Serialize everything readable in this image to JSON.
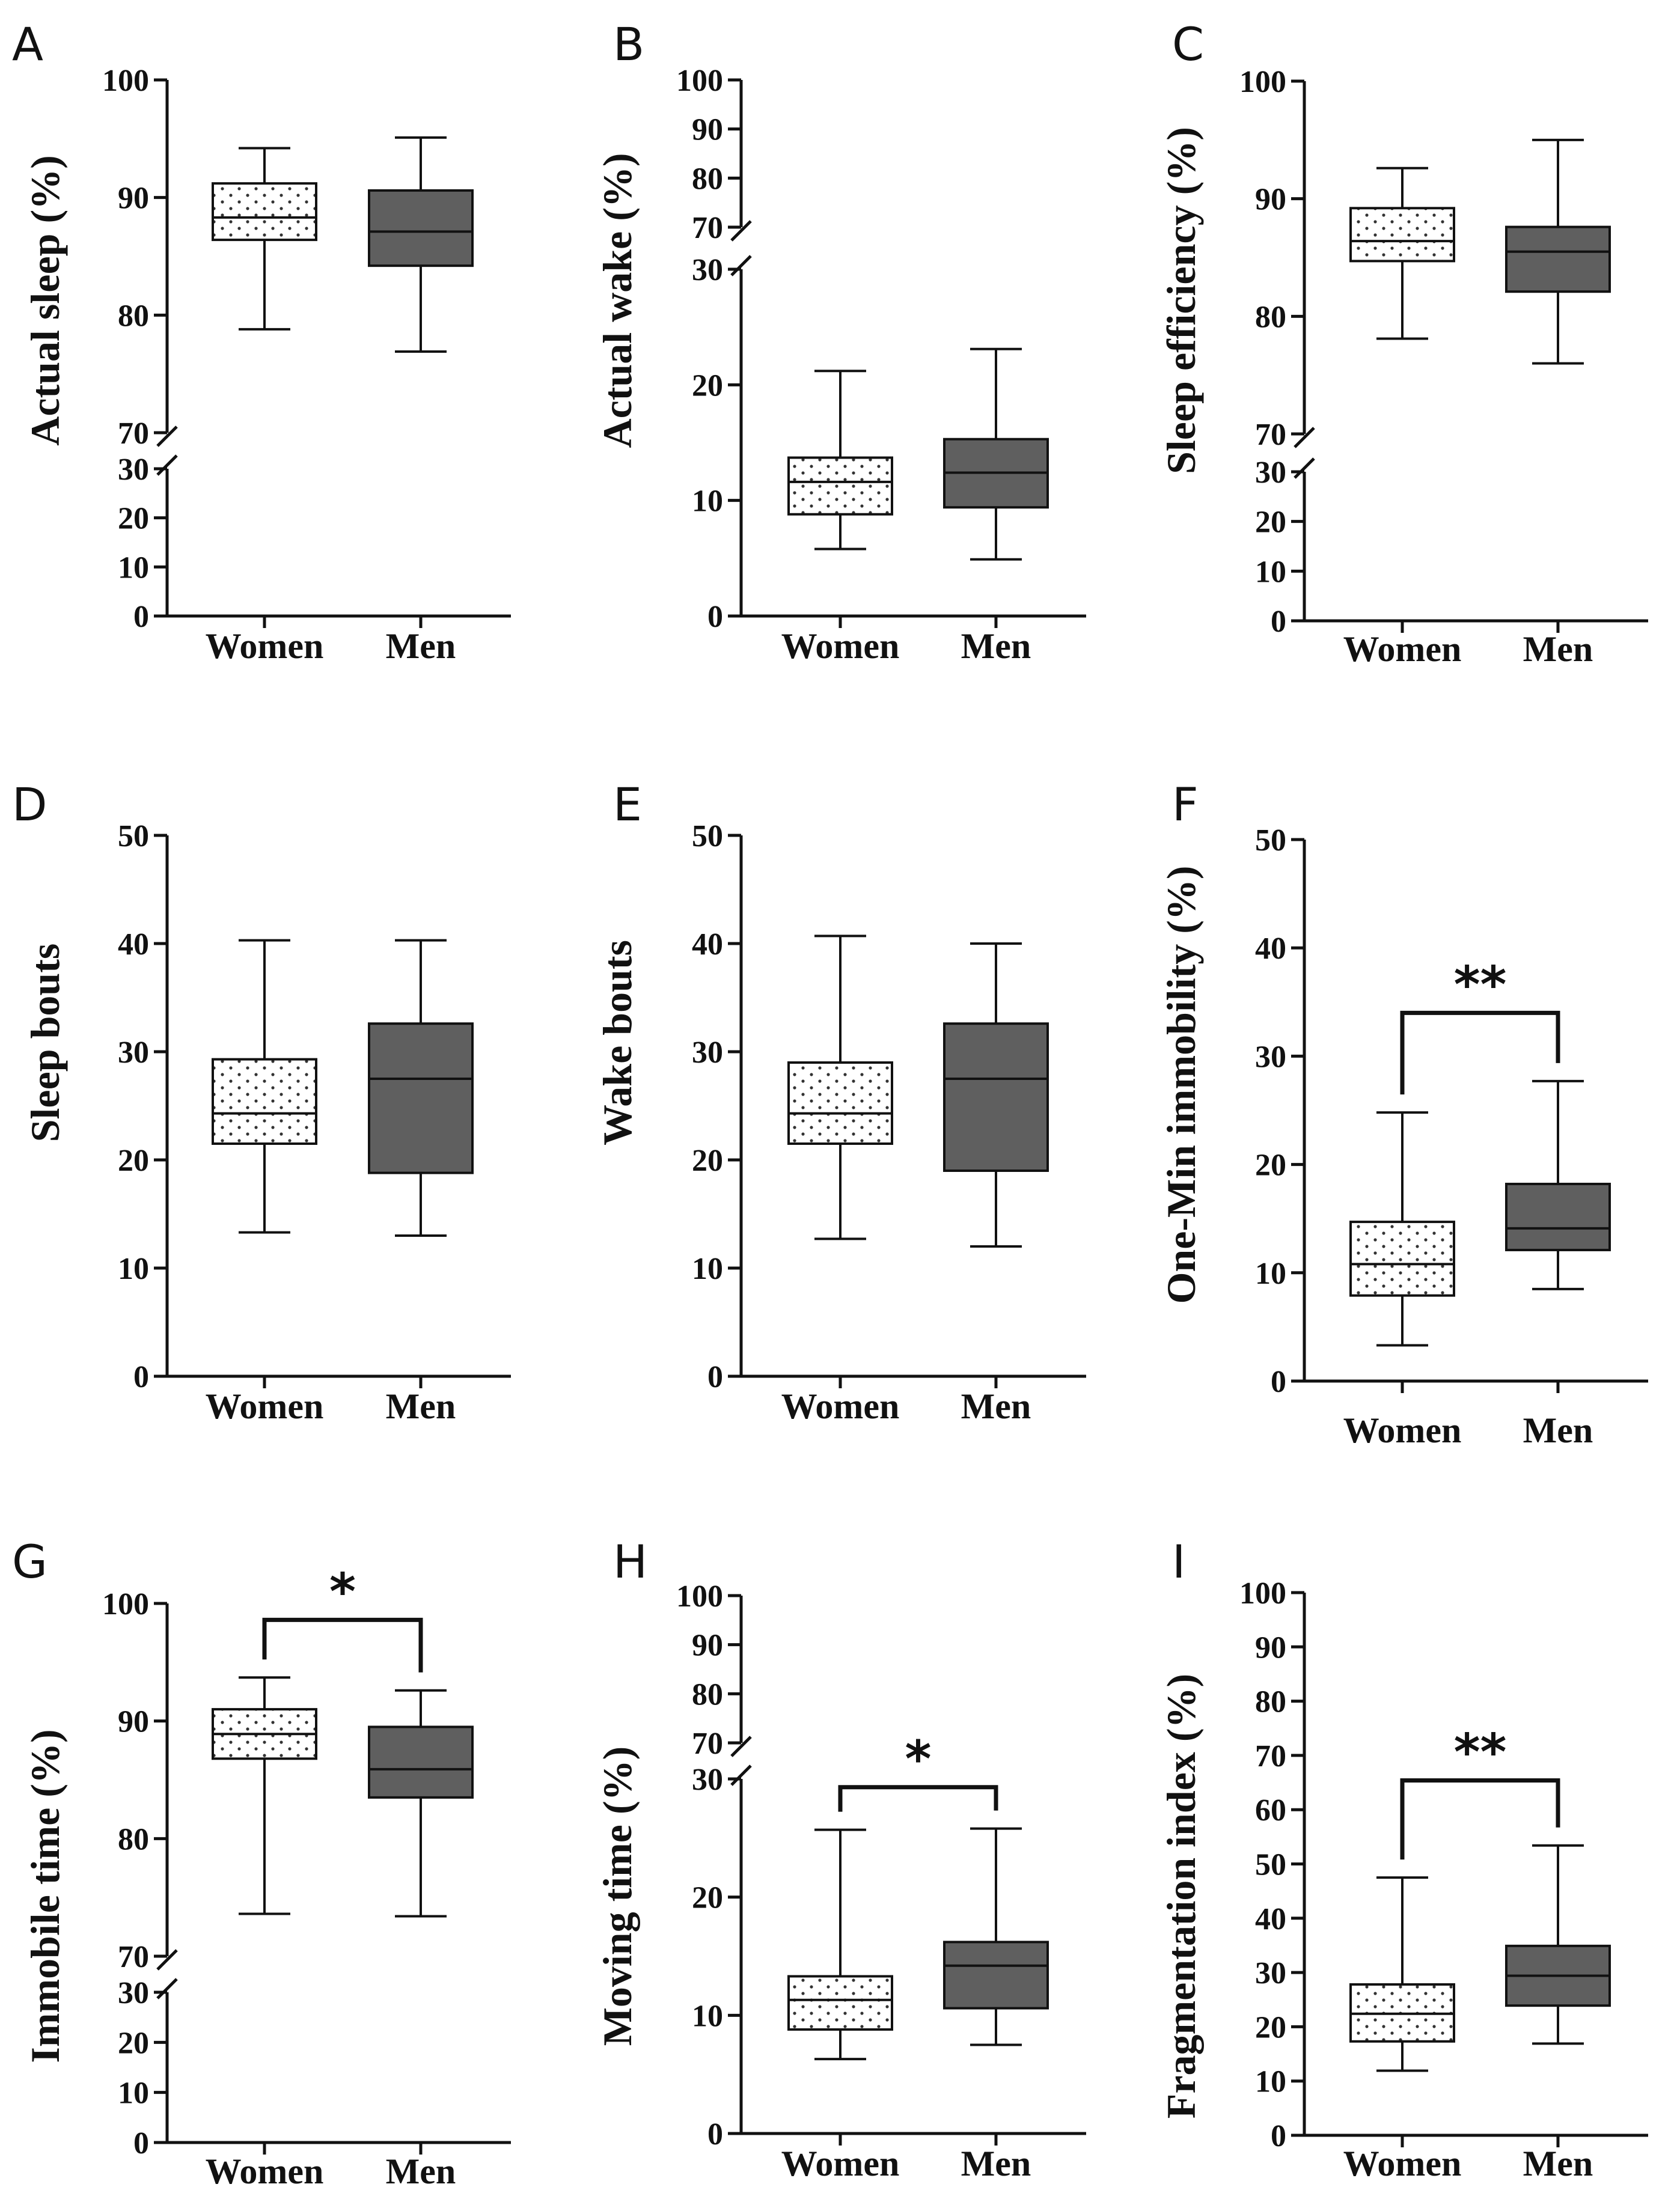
{
  "figure": {
    "colors": {
      "women_fill": "#ffffff",
      "women_dots": "#333333",
      "men_fill": "#5f5f5f",
      "line": "#111111"
    }
  },
  "chart_data": [
    {
      "type": "boxplot",
      "panel": "A",
      "ylabel": "Actual sleep (%)",
      "categories": [
        "Women",
        "Men"
      ],
      "broken_axis": true,
      "low_segment": [
        0,
        30
      ],
      "high_segment": [
        70,
        100
      ],
      "low_ticks": [
        "0",
        "10",
        "20",
        "30"
      ],
      "high_ticks": [
        "70",
        "80",
        "90",
        "100"
      ],
      "boxes": [
        {
          "category": "Women",
          "min": 78.8,
          "q1": 86.4,
          "median": 88.3,
          "q3": 91.2,
          "max": 94.2
        },
        {
          "category": "Men",
          "min": 76.9,
          "q1": 84.2,
          "median": 87.1,
          "q3": 90.6,
          "max": 95.1
        }
      ],
      "significance": null
    },
    {
      "type": "boxplot",
      "panel": "B",
      "ylabel": "Actual wake (%)",
      "categories": [
        "Women",
        "Men"
      ],
      "broken_axis": true,
      "low_segment": [
        0,
        30
      ],
      "high_segment": [
        70,
        100
      ],
      "low_ticks": [
        "0",
        "10",
        "20",
        "30"
      ],
      "high_ticks": [
        "70",
        "80",
        "90",
        "100"
      ],
      "boxes": [
        {
          "category": "Women",
          "min": 5.8,
          "q1": 8.8,
          "median": 11.6,
          "q3": 13.7,
          "max": 21.2
        },
        {
          "category": "Men",
          "min": 4.9,
          "q1": 9.4,
          "median": 12.4,
          "q3": 15.3,
          "max": 23.1
        }
      ],
      "significance": null
    },
    {
      "type": "boxplot",
      "panel": "C",
      "ylabel": "Sleep efficiency (%)",
      "categories": [
        "Women",
        "Men"
      ],
      "broken_axis": true,
      "low_segment": [
        0,
        30
      ],
      "high_segment": [
        70,
        100
      ],
      "low_ticks": [
        "0",
        "10",
        "20",
        "30"
      ],
      "high_ticks": [
        "70",
        "80",
        "90",
        "100"
      ],
      "boxes": [
        {
          "category": "Women",
          "min": 78.1,
          "q1": 84.7,
          "median": 86.4,
          "q3": 89.2,
          "max": 92.6
        },
        {
          "category": "Men",
          "min": 76.0,
          "q1": 82.1,
          "median": 85.5,
          "q3": 87.6,
          "max": 95.0
        }
      ],
      "significance": null
    },
    {
      "type": "boxplot",
      "panel": "D",
      "ylabel": "Sleep bouts",
      "categories": [
        "Women",
        "Men"
      ],
      "broken_axis": false,
      "ylim": [
        0,
        50
      ],
      "ticks": [
        "0",
        "10",
        "20",
        "30",
        "40",
        "50"
      ],
      "boxes": [
        {
          "category": "Women",
          "min": 13.3,
          "q1": 21.5,
          "median": 24.3,
          "q3": 29.3,
          "max": 40.3
        },
        {
          "category": "Men",
          "min": 13.0,
          "q1": 18.8,
          "median": 27.5,
          "q3": 32.6,
          "max": 40.3
        }
      ],
      "significance": null
    },
    {
      "type": "boxplot",
      "panel": "E",
      "ylabel": "Wake bouts",
      "categories": [
        "Women",
        "Men"
      ],
      "broken_axis": false,
      "ylim": [
        0,
        50
      ],
      "ticks": [
        "0",
        "10",
        "20",
        "30",
        "40",
        "50"
      ],
      "boxes": [
        {
          "category": "Women",
          "min": 12.7,
          "q1": 21.5,
          "median": 24.3,
          "q3": 29.0,
          "max": 40.7
        },
        {
          "category": "Men",
          "min": 12.0,
          "q1": 19.0,
          "median": 27.5,
          "q3": 32.6,
          "max": 40.0
        }
      ],
      "significance": null
    },
    {
      "type": "boxplot",
      "panel": "F",
      "ylabel": "One-Min immobility (%)",
      "categories": [
        "Women",
        "Men"
      ],
      "broken_axis": false,
      "ylim": [
        0,
        50
      ],
      "ticks": [
        "0",
        "10",
        "20",
        "30",
        "40",
        "50"
      ],
      "boxes": [
        {
          "category": "Women",
          "min": 3.3,
          "q1": 7.9,
          "median": 10.8,
          "q3": 14.7,
          "max": 24.8
        },
        {
          "category": "Men",
          "min": 8.5,
          "q1": 12.1,
          "median": 14.1,
          "q3": 18.2,
          "max": 27.7
        }
      ],
      "significance": {
        "label": "**",
        "bracket_y": 34.0
      }
    },
    {
      "type": "boxplot",
      "panel": "G",
      "ylabel": "Immobile time (%)",
      "categories": [
        "Women",
        "Men"
      ],
      "broken_axis": true,
      "low_segment": [
        0,
        30
      ],
      "high_segment": [
        70,
        100
      ],
      "low_ticks": [
        "0",
        "10",
        "20",
        "30"
      ],
      "high_ticks": [
        "70",
        "80",
        "90",
        "100"
      ],
      "boxes": [
        {
          "category": "Women",
          "min": 73.6,
          "q1": 86.8,
          "median": 88.9,
          "q3": 91.0,
          "max": 93.7
        },
        {
          "category": "Men",
          "min": 73.4,
          "q1": 83.5,
          "median": 85.9,
          "q3": 89.5,
          "max": 92.6
        }
      ],
      "significance": {
        "label": "*",
        "bracket_y": 98.6
      }
    },
    {
      "type": "boxplot",
      "panel": "H",
      "ylabel": "Moving time (%)",
      "categories": [
        "Women",
        "Men"
      ],
      "broken_axis": true,
      "low_segment": [
        0,
        30
      ],
      "high_segment": [
        70,
        100
      ],
      "low_ticks": [
        "0",
        "10",
        "20",
        "30"
      ],
      "high_ticks": [
        "70",
        "80",
        "90",
        "100"
      ],
      "boxes": [
        {
          "category": "Women",
          "min": 6.3,
          "q1": 8.8,
          "median": 11.3,
          "q3": 13.3,
          "max": 25.7
        },
        {
          "category": "Men",
          "min": 7.5,
          "q1": 10.6,
          "median": 14.2,
          "q3": 16.2,
          "max": 25.8
        }
      ],
      "significance": {
        "label": "*",
        "bracket_y": 29.3
      }
    },
    {
      "type": "boxplot",
      "panel": "I",
      "ylabel": "Fragmentation index (%)",
      "categories": [
        "Women",
        "Men"
      ],
      "broken_axis": false,
      "ylim": [
        0,
        100
      ],
      "ticks": [
        "0",
        "10",
        "20",
        "30",
        "40",
        "50",
        "60",
        "70",
        "80",
        "90",
        "100"
      ],
      "boxes": [
        {
          "category": "Women",
          "min": 11.9,
          "q1": 17.3,
          "median": 22.4,
          "q3": 27.8,
          "max": 47.5
        },
        {
          "category": "Men",
          "min": 16.9,
          "q1": 23.9,
          "median": 29.4,
          "q3": 34.9,
          "max": 53.4
        }
      ],
      "significance": {
        "label": "**",
        "bracket_y": 65.4
      }
    }
  ]
}
